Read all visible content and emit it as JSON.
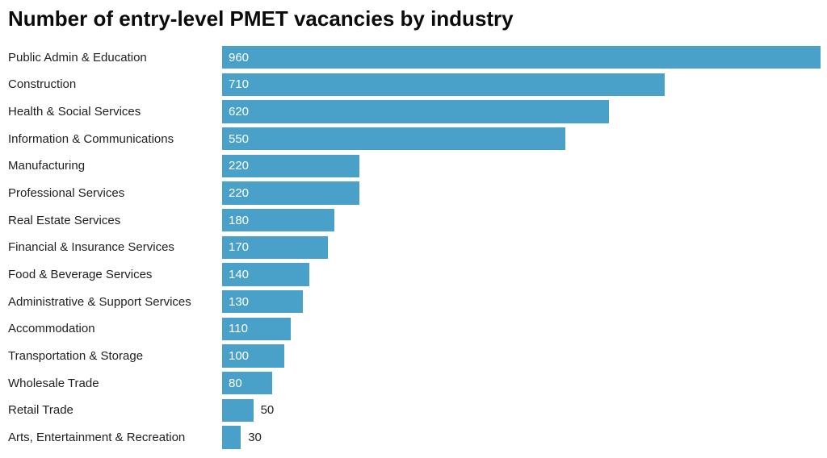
{
  "title": "Number of entry-level PMET vacancies by industry",
  "colors": {
    "bar": "#49A1C9",
    "value_label_inside": "#FFFFFF",
    "value_label_outside": "#202124",
    "category_text": "#202124",
    "title_text": "#0B0B0B",
    "background": "#FFFFFF"
  },
  "chart_data": {
    "type": "bar",
    "orientation": "horizontal",
    "title": "Number of entry-level PMET vacancies by industry",
    "categories": [
      "Public Admin & Education",
      "Construction",
      "Health & Social Services",
      "Information & Communications",
      "Manufacturing",
      "Professional Services",
      "Real Estate Services",
      "Financial & Insurance Services",
      "Food & Beverage Services",
      "Administrative & Support Services",
      "Accommodation",
      "Transportation & Storage",
      "Wholesale Trade",
      "Retail Trade",
      "Arts, Entertainment & Recreation"
    ],
    "values": [
      960,
      710,
      620,
      550,
      220,
      220,
      180,
      170,
      140,
      130,
      110,
      100,
      80,
      50,
      30
    ],
    "xlabel": "",
    "ylabel": "",
    "xlim": [
      0,
      960
    ],
    "grid": false,
    "legend_position": "none",
    "value_labels_shown": true,
    "bars_sorted_descending": true
  }
}
